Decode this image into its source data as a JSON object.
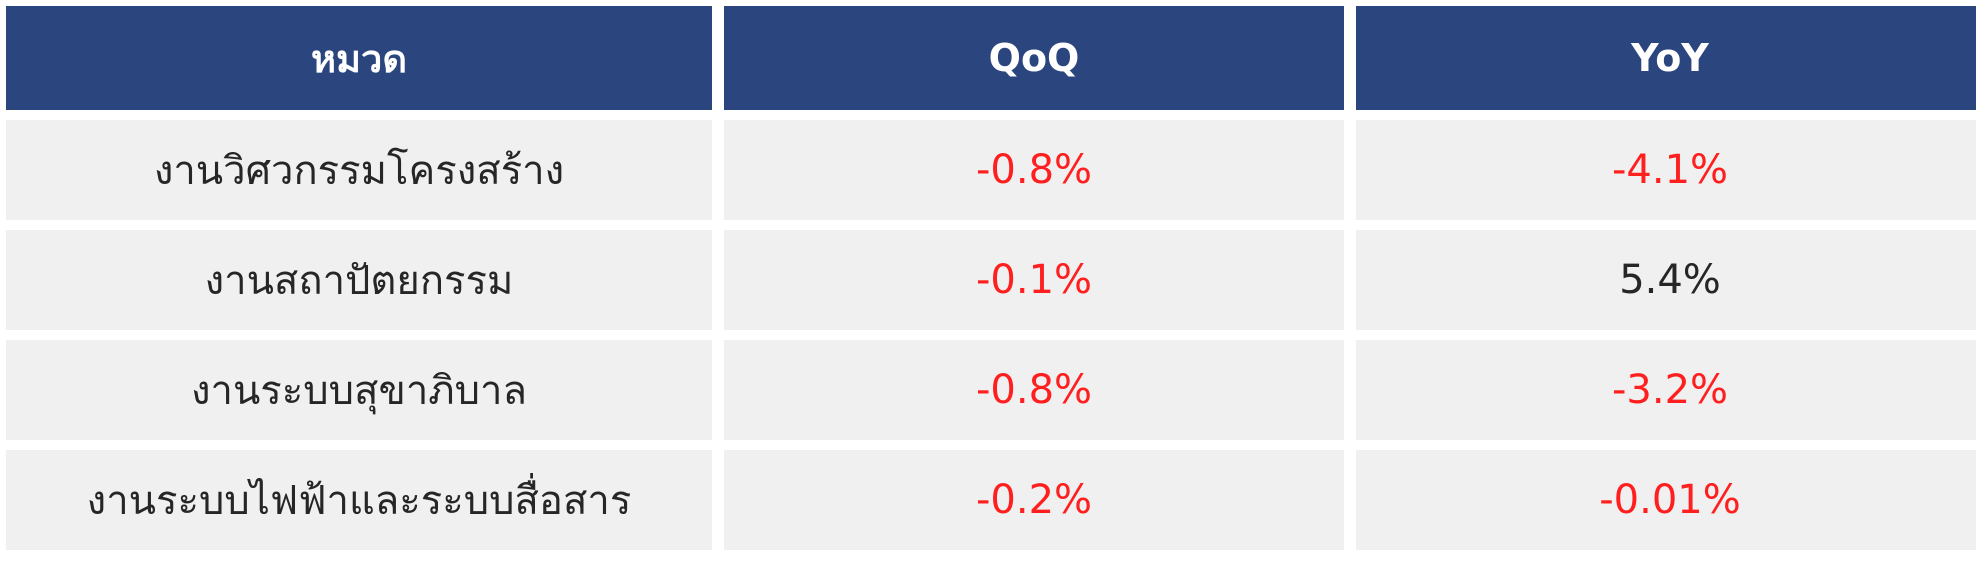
{
  "colors": {
    "header_bg": "#2b467f",
    "header_text": "#ffffff",
    "row_bg": "#f0f0f0",
    "negative": "#ff1f1f",
    "positive": "#262626"
  },
  "table": {
    "headers": [
      "หมวด",
      "QoQ",
      "YoY"
    ],
    "rows": [
      {
        "category": "งานวิศวกรรมโครงสร้าง",
        "qoq": "-0.8%",
        "yoy": "-4.1%"
      },
      {
        "category": "งานสถาปัตยกรรม",
        "qoq": "-0.1%",
        "yoy": "5.4%"
      },
      {
        "category": "งานระบบสุขาภิบาล",
        "qoq": "-0.8%",
        "yoy": "-3.2%"
      },
      {
        "category": "งานระบบไฟฟ้าและระบบสื่อสาร",
        "qoq": "-0.2%",
        "yoy": "-0.01%"
      }
    ]
  }
}
